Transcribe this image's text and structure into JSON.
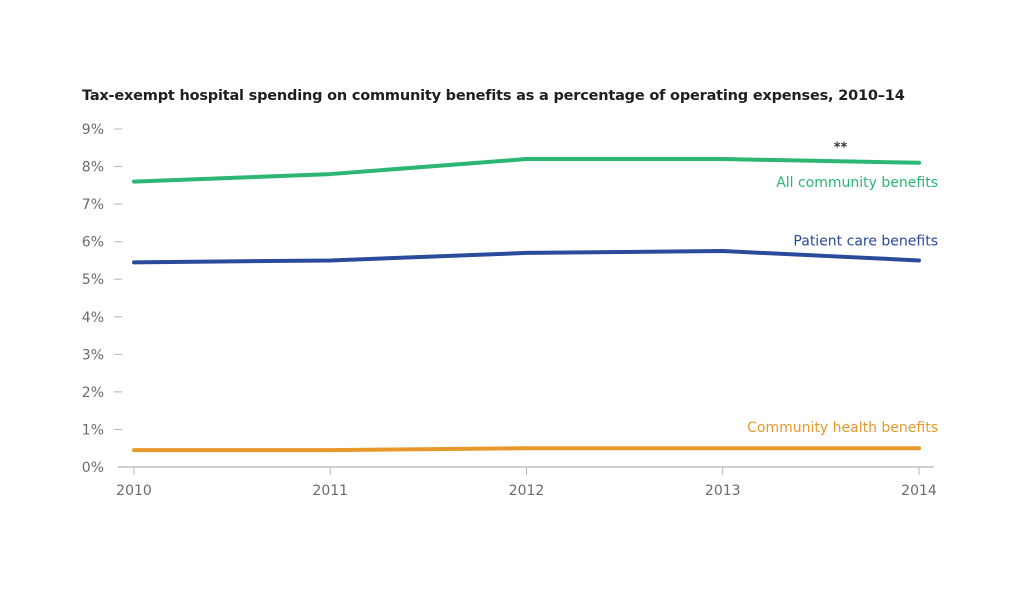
{
  "chart_data": {
    "type": "line",
    "title": "Tax-exempt hospital spending on community benefits as a percentage of operating expenses, 2010–14",
    "xlabel": "",
    "ylabel": "",
    "x": [
      "2010",
      "2011",
      "2012",
      "2013",
      "2014"
    ],
    "ylim": [
      0,
      9
    ],
    "yticks": [
      0,
      1,
      2,
      3,
      4,
      5,
      6,
      7,
      8,
      9
    ],
    "ytick_labels": [
      "0%",
      "1%",
      "2%",
      "3%",
      "4%",
      "5%",
      "6%",
      "7%",
      "8%",
      "9%"
    ],
    "grid": false,
    "legend": "inline-right",
    "series": [
      {
        "name": "All community benefits",
        "color": "#2bb673",
        "values": [
          7.6,
          7.8,
          8.2,
          8.2,
          8.1
        ]
      },
      {
        "name": "Patient care benefits",
        "color": "#2a4a9c",
        "values": [
          5.45,
          5.5,
          5.7,
          5.75,
          5.5
        ]
      },
      {
        "name": "Community health benefits",
        "color": "#e8982a",
        "values": [
          0.45,
          0.45,
          0.5,
          0.5,
          0.5
        ]
      }
    ],
    "annotations": [
      {
        "text": "**",
        "x": "2013.6",
        "series": "All community benefits"
      }
    ]
  }
}
